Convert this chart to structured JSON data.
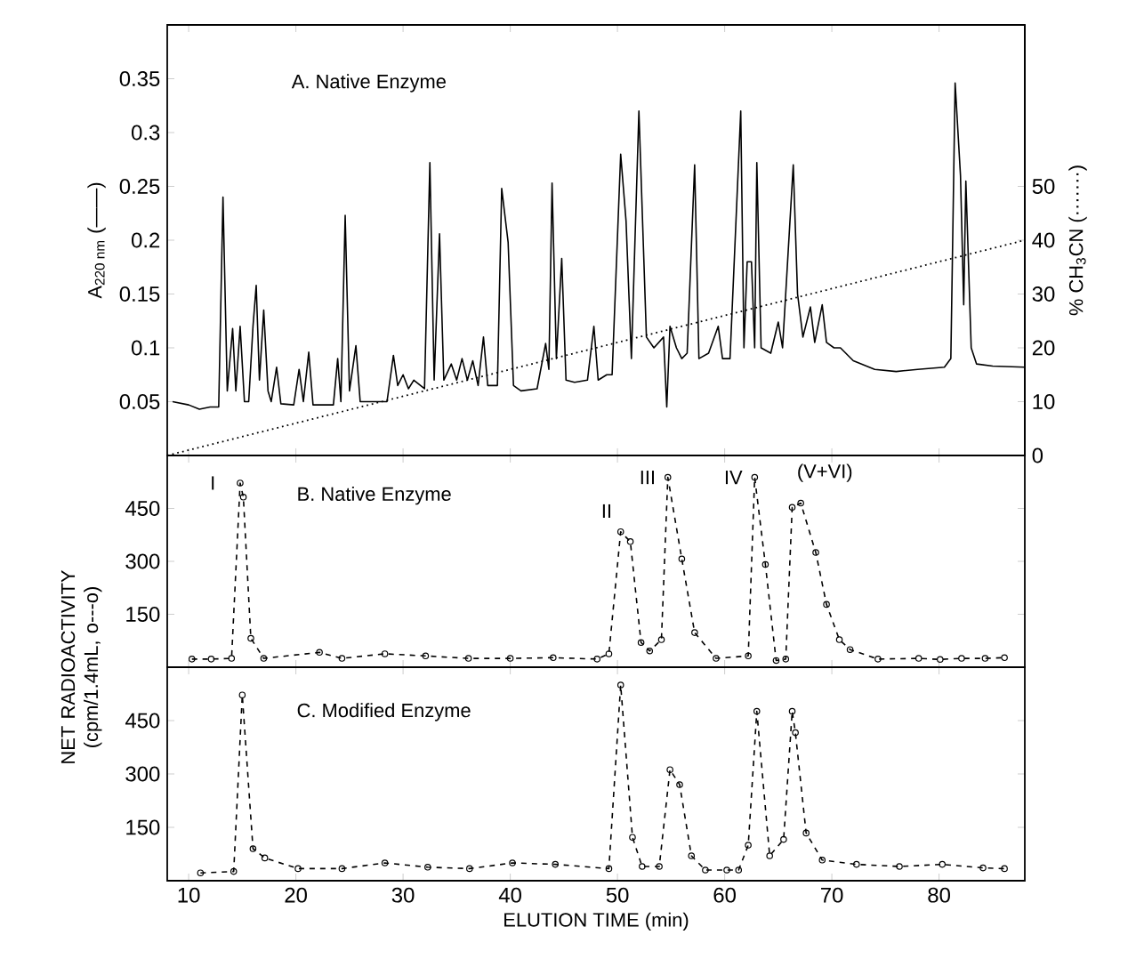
{
  "chart_data": [
    {
      "type": "line",
      "title": "A. Native Enzyme",
      "ylabel": "A$_{220 nm}$ (——)",
      "y2label": "% CH$_{3}$CN (·······)",
      "xlim": [
        8,
        88
      ],
      "xticks": [
        10,
        20,
        30,
        40,
        50,
        60,
        70,
        80
      ],
      "ylim": [
        0,
        0.4
      ],
      "yticks": [
        0.05,
        0.1,
        0.15,
        0.2,
        0.25,
        0.3,
        0.35
      ],
      "y2lim": [
        0,
        80
      ],
      "y2ticks": [
        0,
        10,
        20,
        30,
        40,
        50
      ],
      "tick_labels": "y",
      "marker": "none",
      "series": [
        {
          "color": "#000000",
          "line_style": "solid",
          "x": [
            8.5,
            10,
            11,
            12,
            12.8,
            13.2,
            13.6,
            14.1,
            14.4,
            14.8,
            15.2,
            15.6,
            16.0,
            16.3,
            16.6,
            17.0,
            17.4,
            17.7,
            18.2,
            18.6,
            19.8,
            20.3,
            20.7,
            21.2,
            21.6,
            23.5,
            23.9,
            24.2,
            24.6,
            25.0,
            25.6,
            26.0,
            28.5,
            29.1,
            29.5,
            30,
            30.5,
            31,
            32,
            32.5,
            32.9,
            33.4,
            33.8,
            34.5,
            35,
            35.5,
            36,
            36.5,
            37,
            37.5,
            37.9,
            38.8,
            39.2,
            39.8,
            40.3,
            41,
            42.5,
            43.3,
            43.6,
            43.9,
            44.3,
            44.8,
            45.2,
            46,
            47.2,
            47.8,
            48.2,
            49,
            49.5,
            50.3,
            50.8,
            51.3,
            52.0,
            52.4,
            52.7,
            53.0,
            53.4,
            53.9,
            54.3,
            54.6,
            54.9,
            55.5,
            56,
            56.5,
            57.2,
            57.6,
            58.5,
            59.4,
            59.8,
            60.5,
            61.5,
            61.8,
            62.1,
            62.5,
            62.8,
            63.0,
            63.4,
            64.3,
            65.0,
            65.4,
            66.0,
            66.4,
            66.8,
            67.3,
            68.0,
            68.4,
            69.1,
            69.5,
            70.2,
            70.8,
            72,
            74,
            76,
            78,
            80.5,
            81.1,
            81.5,
            82.0,
            82.3,
            82.5,
            83.0,
            83.5,
            85,
            88
          ],
          "values": [
            0.05,
            0.047,
            0.043,
            0.045,
            0.045,
            0.24,
            0.06,
            0.118,
            0.06,
            0.12,
            0.05,
            0.05,
            0.12,
            0.158,
            0.07,
            0.135,
            0.06,
            0.05,
            0.082,
            0.048,
            0.047,
            0.08,
            0.05,
            0.096,
            0.047,
            0.047,
            0.09,
            0.05,
            0.223,
            0.06,
            0.102,
            0.05,
            0.05,
            0.093,
            0.065,
            0.075,
            0.062,
            0.07,
            0.062,
            0.272,
            0.07,
            0.206,
            0.07,
            0.085,
            0.07,
            0.09,
            0.07,
            0.088,
            0.065,
            0.11,
            0.065,
            0.065,
            0.248,
            0.198,
            0.065,
            0.06,
            0.062,
            0.104,
            0.08,
            0.253,
            0.09,
            0.183,
            0.07,
            0.068,
            0.07,
            0.12,
            0.07,
            0.075,
            0.075,
            0.28,
            0.218,
            0.09,
            0.32,
            null,
            0.11,
            null,
            0.1,
            null,
            0.11,
            0.045,
            0.12,
            0.1,
            0.09,
            0.095,
            0.27,
            0.09,
            0.095,
            0.12,
            0.09,
            0.09,
            0.32,
            0.1,
            0.18,
            0.18,
            0.1,
            0.272,
            0.1,
            0.095,
            0.124,
            0.1,
            null,
            0.27,
            0.15,
            0.11,
            0.138,
            0.105,
            0.14,
            0.105,
            0.1,
            0.1,
            0.088,
            0.08,
            0.078,
            0.08,
            0.082,
            0.09,
            0.346,
            0.26,
            0.14,
            0.255,
            0.1,
            0.085,
            0.083,
            0.082
          ]
        },
        {
          "color": "#000000",
          "line_style": "dotted",
          "axis": "y2",
          "x": [
            8,
            88
          ],
          "values": [
            0,
            40
          ]
        }
      ]
    },
    {
      "type": "line",
      "title": "B. Native Enzyme",
      "ylabel": "NET RADIOACTIVITY (cpm/1.4mL, o---o)",
      "xlim": [
        8,
        88
      ],
      "xticks": [
        10,
        20,
        30,
        40,
        50,
        60,
        70,
        80
      ],
      "ylim": [
        0,
        600
      ],
      "yticks": [
        150,
        300,
        450
      ],
      "tick_labels": "y",
      "marker": "circle",
      "line_style": "dashed",
      "annotations": [
        {
          "text": "I",
          "x": 14.8,
          "y": 522
        },
        {
          "text": "II",
          "x": 50.3,
          "y": 384
        },
        {
          "text": "III",
          "x": 54.7,
          "y": 538
        },
        {
          "text": "IV",
          "x": 62.8,
          "y": 538
        },
        {
          "text": "(V+VI)",
          "x": 67.1,
          "y": 465
        }
      ],
      "series": [
        {
          "color": "#000000",
          "x": [
            10.3,
            12.1,
            14.0,
            14.8,
            15.1,
            15.8,
            17.0,
            22.2,
            24.3,
            28.3,
            32.1,
            36.1,
            40.0,
            44.0,
            48.1,
            49.2,
            50.3,
            51.2,
            52.2,
            53.0,
            54.1,
            54.7,
            56.0,
            57.2,
            59.2,
            62.2,
            62.8,
            63.8,
            64.8,
            65.7,
            66.3,
            67.1,
            68.5,
            69.5,
            70.7,
            71.7,
            74.3,
            78.1,
            80.1,
            82.1,
            84.3,
            86.1
          ],
          "values": [
            23,
            23,
            25,
            522,
            482,
            82,
            25,
            42,
            25,
            38,
            32,
            25,
            25,
            27,
            23,
            38,
            384,
            356,
            70,
            46,
            78,
            538,
            307,
            98,
            25,
            32,
            538,
            291,
            19,
            23,
            453,
            465,
            325,
            178,
            78,
            50,
            23,
            25,
            22,
            25,
            25,
            27
          ]
        }
      ]
    },
    {
      "type": "line",
      "title": "C. Modified Enzyme",
      "xlabel": "ELUTION TIME (min)",
      "xlim": [
        8,
        88
      ],
      "xticks": [
        10,
        20,
        30,
        40,
        50,
        60,
        70,
        80
      ],
      "ylim": [
        0,
        600
      ],
      "yticks": [
        150,
        300,
        450
      ],
      "marker": "circle",
      "line_style": "dashed",
      "series": [
        {
          "color": "#000000",
          "x": [
            11.1,
            14.2,
            15.0,
            16.0,
            17.1,
            20.2,
            24.3,
            28.3,
            32.3,
            36.2,
            40.2,
            44.2,
            49.2,
            50.3,
            51.4,
            52.3,
            53.9,
            54.9,
            55.8,
            56.9,
            58.2,
            60.2,
            61.3,
            62.2,
            63.0,
            64.2,
            65.5,
            66.3,
            66.6,
            67.6,
            69.1,
            72.3,
            76.3,
            80.3,
            84.1,
            86.1
          ],
          "values": [
            22,
            26,
            522,
            90,
            64,
            34,
            34,
            50,
            38,
            34,
            50,
            46,
            34,
            550,
            122,
            40,
            40,
            312,
            270,
            70,
            30,
            30,
            30,
            100,
            476,
            70,
            116,
            476,
            416,
            134,
            58,
            46,
            40,
            46,
            36,
            34
          ]
        }
      ]
    }
  ]
}
